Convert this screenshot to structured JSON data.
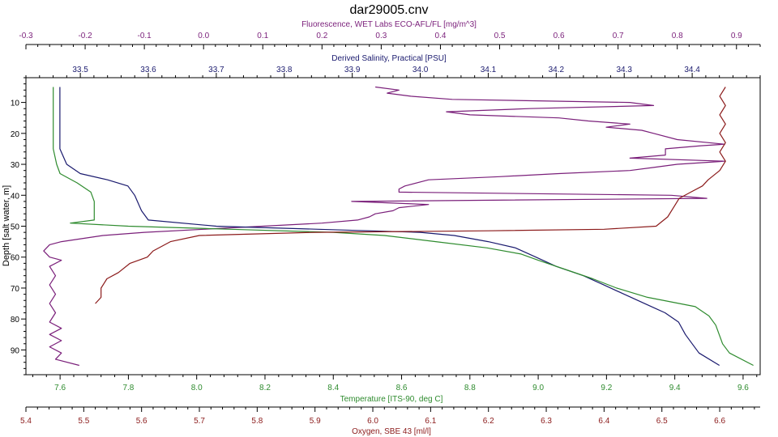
{
  "chart_data": {
    "type": "line",
    "title": "dar29005.cnv",
    "ylabel": "Depth [salt water, m]",
    "yticks": [
      "10",
      "20",
      "30",
      "40",
      "50",
      "60",
      "70",
      "80",
      "90"
    ],
    "ylim": [
      2,
      98
    ],
    "y_inverted": true,
    "grid": false,
    "axes": {
      "fluorescence": {
        "label": "Fluorescence, WET Labs ECO-AFL/FL [mg/m^3]",
        "ticks": [
          "-0.3",
          "-0.2",
          "-0.1",
          "0.0",
          "0.1",
          "0.2",
          "0.3",
          "0.4",
          "0.5",
          "0.6",
          "0.7",
          "0.8",
          "0.9"
        ],
        "range": [
          -0.3,
          0.94
        ],
        "color": "#7a1f7a",
        "position": "top"
      },
      "salinity": {
        "label": "Derived Salinity, Practical [PSU]",
        "ticks": [
          "33.5",
          "33.6",
          "33.7",
          "33.8",
          "33.9",
          "34.0",
          "34.1",
          "34.2",
          "34.3",
          "34.4"
        ],
        "range": [
          33.42,
          34.5
        ],
        "color": "#1a1a6e",
        "position": "top"
      },
      "temperature": {
        "label": "Temperature [ITS-90, deg C]",
        "ticks": [
          "7.6",
          "7.8",
          "8.0",
          "8.2",
          "8.4",
          "8.6",
          "8.8",
          "9.0",
          "9.2",
          "9.4",
          "9.6"
        ],
        "range": [
          7.5,
          9.65
        ],
        "color": "#2e8b2e",
        "position": "bottom"
      },
      "oxygen": {
        "label": "Oxygen, SBE 43 [ml/l]",
        "ticks": [
          "5.4",
          "5.5",
          "5.6",
          "5.7",
          "5.8",
          "5.9",
          "6.0",
          "6.1",
          "6.2",
          "6.3",
          "6.4",
          "6.5",
          "6.6"
        ],
        "range": [
          5.4,
          6.67
        ],
        "color": "#8b1a1a",
        "position": "bottom"
      }
    },
    "series": [
      {
        "axis": "fluorescence",
        "color": "#7a1f7a",
        "points": [
          [
            0.29,
            5
          ],
          [
            0.33,
            6
          ],
          [
            0.31,
            7
          ],
          [
            0.35,
            8
          ],
          [
            0.42,
            9
          ],
          [
            0.72,
            10
          ],
          [
            0.76,
            11
          ],
          [
            0.55,
            12
          ],
          [
            0.41,
            13
          ],
          [
            0.45,
            14
          ],
          [
            0.6,
            15
          ],
          [
            0.65,
            16
          ],
          [
            0.72,
            17
          ],
          [
            0.68,
            18
          ],
          [
            0.74,
            19
          ],
          [
            0.76,
            20
          ],
          [
            0.8,
            22
          ],
          [
            0.88,
            23.5
          ],
          [
            0.84,
            24
          ],
          [
            0.78,
            25
          ],
          [
            0.78,
            27
          ],
          [
            0.72,
            28
          ],
          [
            0.88,
            29
          ],
          [
            0.8,
            30
          ],
          [
            0.76,
            31
          ],
          [
            0.72,
            32
          ],
          [
            0.6,
            33
          ],
          [
            0.5,
            34
          ],
          [
            0.38,
            35
          ],
          [
            0.34,
            37
          ],
          [
            0.33,
            38
          ],
          [
            0.33,
            39
          ],
          [
            0.79,
            40
          ],
          [
            0.85,
            41
          ],
          [
            0.25,
            42
          ],
          [
            0.38,
            43
          ],
          [
            0.33,
            44
          ],
          [
            0.32,
            45
          ],
          [
            0.29,
            46
          ],
          [
            0.28,
            47
          ],
          [
            0.26,
            48
          ],
          [
            0.2,
            49
          ],
          [
            0.1,
            50
          ],
          [
            0.0,
            51
          ],
          [
            -0.1,
            52
          ],
          [
            -0.17,
            53
          ],
          [
            -0.24,
            55
          ],
          [
            -0.26,
            56
          ],
          [
            -0.27,
            58
          ],
          [
            -0.26,
            60
          ],
          [
            -0.24,
            61
          ],
          [
            -0.26,
            63
          ],
          [
            -0.25,
            66
          ],
          [
            -0.26,
            69
          ],
          [
            -0.25,
            72
          ],
          [
            -0.26,
            75
          ],
          [
            -0.25,
            78
          ],
          [
            -0.26,
            81
          ],
          [
            -0.24,
            83
          ],
          [
            -0.26,
            85
          ],
          [
            -0.24,
            87
          ],
          [
            -0.26,
            89
          ],
          [
            -0.24,
            91
          ],
          [
            -0.25,
            93
          ],
          [
            -0.21,
            95
          ]
        ]
      },
      {
        "axis": "salinity",
        "color": "#1a1a6e",
        "points": [
          [
            33.47,
            5
          ],
          [
            33.47,
            10
          ],
          [
            33.47,
            15
          ],
          [
            33.47,
            20
          ],
          [
            33.47,
            25
          ],
          [
            33.48,
            30
          ],
          [
            33.5,
            33
          ],
          [
            33.54,
            35
          ],
          [
            33.57,
            37
          ],
          [
            33.58,
            40
          ],
          [
            33.59,
            45
          ],
          [
            33.6,
            48
          ],
          [
            33.7,
            50
          ],
          [
            33.85,
            51
          ],
          [
            34.0,
            52
          ],
          [
            34.05,
            53
          ],
          [
            34.1,
            55
          ],
          [
            34.14,
            57
          ],
          [
            34.17,
            60
          ],
          [
            34.2,
            63
          ],
          [
            34.24,
            66
          ],
          [
            34.27,
            69
          ],
          [
            34.3,
            72
          ],
          [
            34.33,
            75
          ],
          [
            34.36,
            78
          ],
          [
            34.38,
            81
          ],
          [
            34.39,
            85
          ],
          [
            34.4,
            88
          ],
          [
            34.41,
            91
          ],
          [
            34.44,
            95
          ]
        ]
      },
      {
        "axis": "temperature",
        "color": "#2e8b2e",
        "points": [
          [
            7.58,
            5
          ],
          [
            7.58,
            10
          ],
          [
            7.58,
            15
          ],
          [
            7.58,
            20
          ],
          [
            7.58,
            25
          ],
          [
            7.59,
            30
          ],
          [
            7.6,
            33
          ],
          [
            7.65,
            36
          ],
          [
            7.69,
            39
          ],
          [
            7.7,
            42
          ],
          [
            7.7,
            48
          ],
          [
            7.63,
            49
          ],
          [
            7.8,
            50
          ],
          [
            8.1,
            51
          ],
          [
            8.4,
            52
          ],
          [
            8.55,
            53
          ],
          [
            8.7,
            55
          ],
          [
            8.85,
            57
          ],
          [
            8.95,
            59
          ],
          [
            9.0,
            61
          ],
          [
            9.08,
            64
          ],
          [
            9.16,
            67
          ],
          [
            9.23,
            70
          ],
          [
            9.32,
            73
          ],
          [
            9.46,
            76
          ],
          [
            9.5,
            79
          ],
          [
            9.52,
            82
          ],
          [
            9.53,
            85
          ],
          [
            9.54,
            88
          ],
          [
            9.56,
            91
          ],
          [
            9.63,
            95
          ]
        ]
      },
      {
        "axis": "oxygen",
        "color": "#8b1a1a",
        "points": [
          [
            6.61,
            5
          ],
          [
            6.6,
            8
          ],
          [
            6.61,
            11
          ],
          [
            6.6,
            14
          ],
          [
            6.61,
            17
          ],
          [
            6.6,
            20
          ],
          [
            6.61,
            23
          ],
          [
            6.6,
            26
          ],
          [
            6.61,
            29
          ],
          [
            6.6,
            32
          ],
          [
            6.58,
            35
          ],
          [
            6.57,
            37
          ],
          [
            6.55,
            39
          ],
          [
            6.53,
            41
          ],
          [
            6.52,
            44
          ],
          [
            6.51,
            47
          ],
          [
            6.49,
            50
          ],
          [
            6.4,
            51
          ],
          [
            6.2,
            51.5
          ],
          [
            5.9,
            52
          ],
          [
            5.7,
            53
          ],
          [
            5.65,
            55
          ],
          [
            5.62,
            58
          ],
          [
            5.61,
            60
          ],
          [
            5.58,
            62
          ],
          [
            5.56,
            65
          ],
          [
            5.54,
            67
          ],
          [
            5.53,
            70
          ],
          [
            5.53,
            73
          ],
          [
            5.52,
            75
          ]
        ]
      }
    ]
  }
}
